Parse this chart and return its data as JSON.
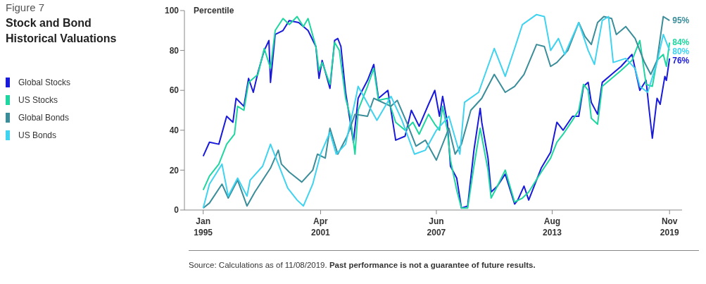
{
  "chart_data": {
    "type": "line",
    "subtitle": "Figure 7",
    "title": "Stock and Bond Historical Valuations",
    "ylabel": "Percentile",
    "xlim": [
      "1994-01",
      "2020-07"
    ],
    "xticks": [
      {
        "value": "1995-01",
        "label": "Jan 1995"
      },
      {
        "value": "2001-04",
        "label": "Apr 2001"
      },
      {
        "value": "2007-06",
        "label": "Jun 2007"
      },
      {
        "value": "2013-08",
        "label": "Aug 2013"
      },
      {
        "value": "2019-11",
        "label": "Nov 2019"
      }
    ],
    "ylim": [
      0,
      100
    ],
    "yticks": [
      0,
      20,
      40,
      60,
      80,
      100
    ],
    "legend": "left",
    "series": [
      {
        "name": "Global Stocks",
        "color": "#1a1adb",
        "x": [
          "1995-01",
          "1995-05",
          "1995-11",
          "1996-04",
          "1996-08",
          "1996-10",
          "1997-03",
          "1997-06",
          "1997-09",
          "1997-12",
          "1998-04",
          "1998-07",
          "1998-08",
          "1998-11",
          "1999-04",
          "1999-08",
          "2000-02",
          "2000-08",
          "2001-01",
          "2001-03",
          "2001-05",
          "2001-10",
          "2002-01",
          "2002-03",
          "2002-05",
          "2002-08",
          "2003-01",
          "2003-04",
          "2003-10",
          "2004-02",
          "2004-05",
          "2004-11",
          "2005-04",
          "2005-10",
          "2006-02",
          "2006-07",
          "2007-01",
          "2007-05",
          "2007-08",
          "2007-10",
          "2008-01",
          "2008-03",
          "2008-07",
          "2008-10",
          "2009-02",
          "2009-06",
          "2009-10",
          "2009-11",
          "2010-03",
          "2010-05",
          "2010-09",
          "2011-02",
          "2011-08",
          "2011-10",
          "2012-02",
          "2012-05",
          "2013-01",
          "2013-07",
          "2013-11",
          "2014-03",
          "2014-09",
          "2015-01",
          "2015-04",
          "2015-07",
          "2015-09",
          "2016-01",
          "2016-04",
          "2016-10",
          "2017-04",
          "2017-11",
          "2018-04",
          "2018-08",
          "2018-10",
          "2018-12",
          "2019-03",
          "2019-05",
          "2019-08",
          "2019-09",
          "2019-11"
        ],
        "values": [
          27,
          34,
          33,
          47,
          44,
          56,
          52,
          66,
          59,
          69,
          80,
          85,
          64,
          88,
          90,
          95,
          94,
          90,
          82,
          66,
          75,
          61,
          85,
          86,
          82,
          59,
          34,
          56,
          65,
          73,
          56,
          60,
          35,
          37,
          50,
          42,
          53,
          60,
          47,
          57,
          44,
          22,
          16,
          1,
          2,
          30,
          51,
          44,
          26,
          9,
          12,
          18,
          3,
          5,
          12,
          5,
          21,
          29,
          44,
          40,
          47,
          47,
          62,
          64,
          54,
          48,
          64,
          68,
          72,
          78,
          60,
          65,
          50,
          36,
          56,
          53,
          67,
          65,
          76
        ],
        "value_labels": [
          null,
          null,
          null,
          null,
          null,
          null,
          null,
          null,
          null,
          null,
          null,
          null,
          null,
          null,
          null,
          null,
          null,
          null,
          null,
          null,
          null,
          null,
          null,
          null,
          null,
          null,
          null,
          null,
          null,
          null,
          null,
          null,
          null,
          null,
          null,
          null,
          null,
          null,
          null,
          null,
          null,
          null,
          null,
          null,
          null,
          null,
          null,
          null,
          null,
          null,
          null,
          null,
          null,
          null,
          null,
          null,
          null,
          null,
          null,
          null,
          null,
          null,
          null,
          null,
          null,
          null,
          null,
          null,
          null,
          null,
          null,
          null,
          null,
          null,
          null,
          null,
          null,
          null,
          "76%"
        ]
      },
      {
        "name": "US Stocks",
        "color": "#1fd6a0",
        "x": [
          "1995-01",
          "1995-05",
          "1995-11",
          "1996-04",
          "1996-09",
          "1996-11",
          "1997-03",
          "1997-06",
          "1997-09",
          "1997-12",
          "1998-04",
          "1998-08",
          "1998-11",
          "1999-04",
          "1999-08",
          "2000-01",
          "2000-05",
          "2000-08",
          "2001-01",
          "2001-03",
          "2001-05",
          "2001-10",
          "2002-01",
          "2002-04",
          "2002-08",
          "2002-11",
          "2003-02",
          "2003-04",
          "2003-10",
          "2004-02",
          "2004-05",
          "2004-11",
          "2005-04",
          "2005-10",
          "2006-03",
          "2006-07",
          "2007-01",
          "2007-05",
          "2007-08",
          "2007-10",
          "2008-01",
          "2008-03",
          "2008-07",
          "2008-10",
          "2009-02",
          "2009-06",
          "2009-10",
          "2010-03",
          "2010-05",
          "2010-09",
          "2011-02",
          "2011-08",
          "2012-01",
          "2012-05",
          "2013-01",
          "2013-07",
          "2013-11",
          "2014-03",
          "2014-09",
          "2015-01",
          "2015-04",
          "2015-07",
          "2015-09",
          "2016-01",
          "2016-04",
          "2016-10",
          "2017-04",
          "2017-11",
          "2018-04",
          "2018-08",
          "2018-12",
          "2019-03",
          "2019-07",
          "2019-09",
          "2019-11"
        ],
        "values": [
          10,
          17,
          23,
          33,
          38,
          52,
          50,
          64,
          66,
          68,
          81,
          71,
          90,
          96,
          93,
          97,
          92,
          96,
          82,
          70,
          74,
          63,
          84,
          80,
          56,
          47,
          28,
          50,
          62,
          71,
          55,
          56,
          44,
          40,
          44,
          38,
          48,
          43,
          40,
          52,
          40,
          25,
          10,
          1,
          1,
          22,
          41,
          20,
          6,
          12,
          20,
          4,
          6,
          9,
          19,
          26,
          34,
          38,
          45,
          50,
          63,
          60,
          46,
          43,
          62,
          66,
          70,
          75,
          85,
          63,
          62,
          75,
          78,
          72,
          84
        ],
        "value_labels": [
          null,
          null,
          null,
          null,
          null,
          null,
          null,
          null,
          null,
          null,
          null,
          null,
          null,
          null,
          null,
          null,
          null,
          null,
          null,
          null,
          null,
          null,
          null,
          null,
          null,
          null,
          null,
          null,
          null,
          null,
          null,
          null,
          null,
          null,
          null,
          null,
          null,
          null,
          null,
          null,
          null,
          null,
          null,
          null,
          null,
          null,
          null,
          null,
          null,
          null,
          null,
          null,
          null,
          null,
          null,
          null,
          null,
          null,
          null,
          null,
          null,
          null,
          null,
          null,
          null,
          null,
          null,
          null,
          null,
          null,
          null,
          null,
          null,
          null,
          "84%"
        ]
      },
      {
        "name": "Global Bonds",
        "color": "#3a8d99",
        "x": [
          "1995-01",
          "1995-05",
          "1996-01",
          "1996-05",
          "1996-11",
          "1997-05",
          "1997-10",
          "1998-08",
          "1999-01",
          "1999-03",
          "1999-08",
          "2000-04",
          "2000-11",
          "2001-02",
          "2001-07",
          "2001-10",
          "2002-03",
          "2002-09",
          "2003-02",
          "2003-10",
          "2004-02",
          "2005-01",
          "2005-05",
          "2005-11",
          "2006-05",
          "2006-11",
          "2007-06",
          "2008-02",
          "2008-06",
          "2008-10",
          "2009-04",
          "2009-11",
          "2010-07",
          "2011-02",
          "2011-08",
          "2012-02",
          "2012-10",
          "2013-03",
          "2013-07",
          "2013-11",
          "2014-06",
          "2015-01",
          "2015-05",
          "2015-09",
          "2016-01",
          "2016-05",
          "2016-10",
          "2017-01",
          "2017-07",
          "2018-01",
          "2018-07",
          "2018-11",
          "2019-03",
          "2019-07",
          "2019-11"
        ],
        "values": [
          1,
          3.5,
          13,
          6,
          15,
          2,
          9,
          21,
          30,
          23,
          19,
          14,
          20,
          28,
          26,
          41,
          28,
          37,
          48,
          47,
          56,
          52,
          55,
          44,
          32,
          35,
          25,
          41,
          28,
          33,
          50,
          56,
          68,
          59,
          62,
          68,
          83,
          82,
          72,
          74,
          80,
          94,
          87,
          83,
          94,
          97,
          96,
          88,
          92,
          86,
          74,
          68,
          75,
          97,
          95
        ],
        "value_labels": [
          null,
          null,
          null,
          null,
          null,
          null,
          null,
          null,
          null,
          null,
          null,
          null,
          null,
          null,
          null,
          null,
          null,
          null,
          null,
          null,
          null,
          null,
          null,
          null,
          null,
          null,
          null,
          null,
          null,
          null,
          null,
          null,
          null,
          null,
          null,
          null,
          null,
          null,
          null,
          null,
          null,
          null,
          null,
          null,
          null,
          null,
          null,
          null,
          null,
          null,
          null,
          null,
          null,
          null,
          "95%"
        ]
      },
      {
        "name": "US Bonds",
        "color": "#3fd3f0",
        "x": [
          "1995-01",
          "1995-05",
          "1996-01",
          "1996-05",
          "1996-11",
          "1997-05",
          "1997-07",
          "1998-03",
          "1998-08",
          "1999-01",
          "1999-07",
          "2000-01",
          "2000-05",
          "2000-11",
          "2001-04",
          "2001-10",
          "2002-02",
          "2002-08",
          "2003-03",
          "2003-04",
          "2004-04",
          "2005-01",
          "2005-08",
          "2006-04",
          "2006-11",
          "2007-06",
          "2008-02",
          "2008-09",
          "2008-12",
          "2009-09",
          "2010-07",
          "2011-02",
          "2011-08",
          "2012-01",
          "2012-10",
          "2013-03",
          "2013-07",
          "2013-12",
          "2014-04",
          "2015-01",
          "2015-07",
          "2015-11",
          "2016-04",
          "2016-08",
          "2016-11",
          "2017-07",
          "2018-01",
          "2018-04",
          "2018-09",
          "2019-03",
          "2019-07",
          "2019-11"
        ],
        "values": [
          1,
          13,
          23,
          7,
          16,
          7,
          15,
          22,
          33,
          23,
          11,
          5,
          2,
          13,
          28,
          39,
          28,
          33,
          58,
          62,
          45,
          57,
          45,
          28,
          30,
          40,
          47,
          28,
          54,
          59,
          81,
          67,
          81,
          93,
          98,
          97,
          80,
          86,
          78,
          94,
          80,
          73,
          95,
          97,
          74,
          76,
          71,
          62,
          59,
          74,
          88,
          80
        ],
        "value_labels": [
          null,
          null,
          null,
          null,
          null,
          null,
          null,
          null,
          null,
          null,
          null,
          null,
          null,
          null,
          null,
          null,
          null,
          null,
          null,
          null,
          null,
          null,
          null,
          null,
          null,
          null,
          null,
          null,
          null,
          null,
          null,
          null,
          null,
          null,
          null,
          null,
          null,
          null,
          null,
          null,
          null,
          null,
          null,
          null,
          null,
          null,
          null,
          null,
          null,
          null,
          null,
          "80%"
        ]
      }
    ],
    "annotations": [
      "Source: Calculations as of 11/08/2019.",
      "Past performance is not a guarantee of future results."
    ]
  }
}
